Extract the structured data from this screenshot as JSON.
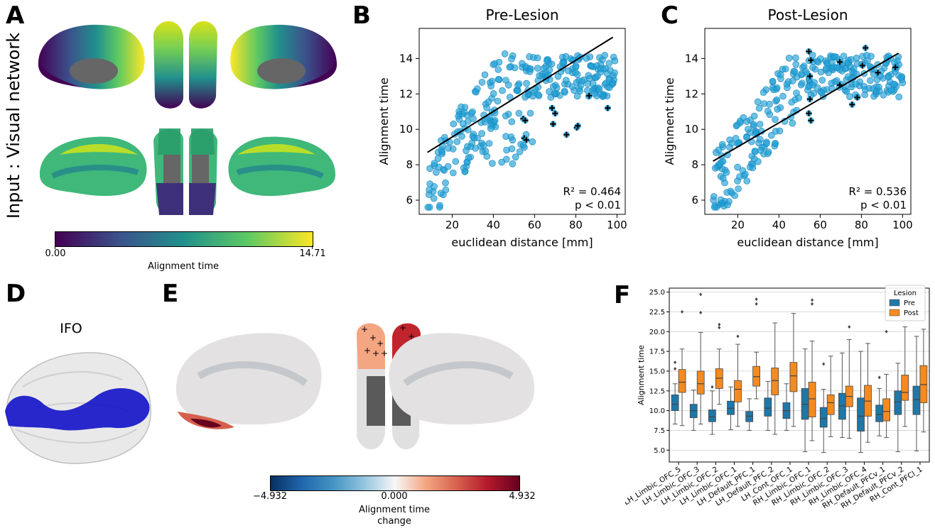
{
  "panels": {
    "A": {
      "label": "A",
      "side_title": "Input : Visual network",
      "colorbar": {
        "min": "0.00",
        "max": "14.71",
        "title": "Alignment time",
        "colors": [
          "#440154",
          "#3b528b",
          "#21918c",
          "#5ec962",
          "#fde725"
        ]
      }
    },
    "B": {
      "label": "B"
    },
    "C": {
      "label": "C"
    },
    "D": {
      "label": "D",
      "title": "IFO"
    },
    "E": {
      "label": "E",
      "colorbar": {
        "min": "−4.932",
        "mid": "0.000",
        "max": "4.932",
        "title_line1": "Alignment time",
        "title_line2": "change",
        "colors": [
          "#053061",
          "#2166ac",
          "#4393c3",
          "#92c5de",
          "#f7f7f7",
          "#f4a582",
          "#d6604d",
          "#b2182b",
          "#67001f"
        ]
      }
    },
    "F": {
      "label": "F"
    }
  },
  "chart_data": [
    {
      "type": "scatter",
      "title": "Pre-Lesion",
      "xlabel": "euclidean distance [mm]",
      "ylabel": "Alignment time",
      "xlim": [
        4,
        104
      ],
      "ylim": [
        5.2,
        15.7
      ],
      "xticks": [
        "20",
        "40",
        "60",
        "80",
        "100"
      ],
      "yticks": [
        "6",
        "8",
        "10",
        "12",
        "14"
      ],
      "annotation_r2": "R² = 0.464",
      "annotation_p": "p < 0.01",
      "fit_line": {
        "x": [
          8,
          98
        ],
        "y": [
          8.7,
          15.2
        ]
      },
      "color": "#1f9fd6",
      "lesion_points": {
        "x": [
          54.5,
          55.5,
          55,
          56,
          68.5,
          69,
          70,
          75.5,
          80.5,
          81,
          86.5,
          95.5
        ],
        "y": [
          10.6,
          10.5,
          9.5,
          9.4,
          11.2,
          10.3,
          10.9,
          9.7,
          10.1,
          10.2,
          11.9,
          11.2
        ]
      }
    },
    {
      "type": "scatter",
      "title": "Post-Lesion",
      "xlabel": "euclidean distance [mm]",
      "ylabel": "Alignment time",
      "xlim": [
        4,
        104
      ],
      "ylim": [
        5.2,
        15.7
      ],
      "xticks": [
        "20",
        "40",
        "60",
        "80",
        "100"
      ],
      "yticks": [
        "6",
        "8",
        "10",
        "12",
        "14"
      ],
      "annotation_r2": "R² = 0.536",
      "annotation_p": "p < 0.01",
      "fit_line": {
        "x": [
          8,
          98
        ],
        "y": [
          8.2,
          14.3
        ]
      },
      "color": "#1f9fd6",
      "lesion_points": {
        "x": [
          54.5,
          55.5,
          55,
          55,
          54.5,
          55.5,
          69.5,
          69.5,
          75.5,
          78,
          80.5,
          82,
          88,
          96.5
        ],
        "y": [
          14.4,
          13.9,
          13.0,
          11.7,
          10.9,
          10.5,
          13.8,
          12.5,
          11.4,
          11.8,
          13.6,
          14.6,
          13.2,
          13.5
        ]
      }
    },
    {
      "type": "box",
      "ylabel": "Alignment time",
      "ylim": [
        3.5,
        25.5
      ],
      "yticks": [
        "5.0",
        "7.5",
        "10.0",
        "12.5",
        "15.0",
        "17.5",
        "20.0",
        "22.5",
        "25.0"
      ],
      "legend_title": "Lesion",
      "legend_position": "top-right",
      "series": [
        {
          "name": "Pre",
          "color": "#1f77a8"
        },
        {
          "name": "Post",
          "color": "#f58a1f"
        }
      ],
      "categories": [
        "LH_Limbic_OFC_5",
        "LH_Limbic_OFC_3",
        "LH_Limbic_OFC_2",
        "LH_Limbic_OFC_1",
        "LH_Default_PFC_1",
        "LH_Default_PFC_2",
        "LH_Cont_OFC_1",
        "RH_Limbic_OFC_1",
        "RH_Limbic_OFC_2",
        "RH_Limbic_OFC_3",
        "RH_Limbic_OFC_4",
        "RH_Default_PFCv_1",
        "RH_Default_PFCv_2",
        "RH_Cont_PFCl_1"
      ],
      "pre": [
        {
          "min": 8.3,
          "q1": 10.0,
          "median": 10.8,
          "q3": 12.0,
          "max": 13.4,
          "outliers": [
            15.3,
            16.1
          ]
        },
        {
          "min": 7.5,
          "q1": 9.1,
          "median": 10.0,
          "q3": 10.8,
          "max": 12.6,
          "outliers": []
        },
        {
          "min": 7.0,
          "q1": 8.6,
          "median": 9.2,
          "q3": 10.1,
          "max": 12.5,
          "outliers": [
            13.0
          ]
        },
        {
          "min": 7.6,
          "q1": 9.5,
          "median": 10.3,
          "q3": 11.2,
          "max": 13.0,
          "outliers": []
        },
        {
          "min": 7.5,
          "q1": 8.6,
          "median": 9.3,
          "q3": 9.9,
          "max": 11.5,
          "outliers": []
        },
        {
          "min": 7.5,
          "q1": 9.3,
          "median": 10.3,
          "q3": 11.6,
          "max": 13.7,
          "outliers": []
        },
        {
          "min": 7.5,
          "q1": 9.0,
          "median": 10.0,
          "q3": 11.0,
          "max": 13.4,
          "outliers": []
        },
        {
          "min": 4.8,
          "q1": 8.9,
          "median": 10.8,
          "q3": 12.8,
          "max": 17.8,
          "outliers": []
        },
        {
          "min": 4.7,
          "q1": 7.9,
          "median": 9.0,
          "q3": 10.4,
          "max": 12.7,
          "outliers": [
            15.9
          ]
        },
        {
          "min": 6.6,
          "q1": 8.9,
          "median": 10.6,
          "q3": 12.2,
          "max": 17.3,
          "outliers": []
        },
        {
          "min": 4.7,
          "q1": 7.4,
          "median": 9.3,
          "q3": 11.6,
          "max": 17.5,
          "outliers": []
        },
        {
          "min": 6.8,
          "q1": 8.6,
          "median": 9.5,
          "q3": 10.7,
          "max": 12.8,
          "outliers": [
            14.2
          ]
        },
        {
          "min": 4.8,
          "q1": 9.5,
          "median": 11.1,
          "q3": 12.5,
          "max": 16.0,
          "outliers": []
        },
        {
          "min": 4.9,
          "q1": 9.5,
          "median": 11.4,
          "q3": 13.1,
          "max": 19.4,
          "outliers": []
        }
      ],
      "post": [
        {
          "min": 8.1,
          "q1": 12.3,
          "median": 13.6,
          "q3": 15.2,
          "max": 17.8,
          "outliers": [
            22.5
          ]
        },
        {
          "min": 8.3,
          "q1": 12.1,
          "median": 13.4,
          "q3": 15.0,
          "max": 19.9,
          "outliers": [
            22.4,
            24.7
          ]
        },
        {
          "min": 10.8,
          "q1": 12.8,
          "median": 14.1,
          "q3": 15.3,
          "max": 17.8,
          "outliers": [
            20.5,
            20.9
          ]
        },
        {
          "min": 8.0,
          "q1": 11.1,
          "median": 12.7,
          "q3": 13.8,
          "max": 18.4,
          "outliers": [
            19.4
          ]
        },
        {
          "min": 11.5,
          "q1": 13.1,
          "median": 14.3,
          "q3": 15.6,
          "max": 17.4,
          "outliers": [
            23.5,
            24.1
          ]
        },
        {
          "min": 7.0,
          "q1": 12.0,
          "median": 13.8,
          "q3": 15.4,
          "max": 21.1,
          "outliers": []
        },
        {
          "min": 8.0,
          "q1": 12.4,
          "median": 14.4,
          "q3": 16.1,
          "max": 22.3,
          "outliers": []
        },
        {
          "min": 6.2,
          "q1": 9.2,
          "median": 11.5,
          "q3": 13.6,
          "max": 18.8,
          "outliers": [
            23.5,
            24.0
          ]
        },
        {
          "min": 6.7,
          "q1": 9.5,
          "median": 11.0,
          "q3": 12.0,
          "max": 16.9,
          "outliers": []
        },
        {
          "min": 6.5,
          "q1": 10.5,
          "median": 11.8,
          "q3": 13.1,
          "max": 19.0,
          "outliers": [
            20.6
          ]
        },
        {
          "min": 6.0,
          "q1": 9.3,
          "median": 11.2,
          "q3": 13.2,
          "max": 18.5,
          "outliers": []
        },
        {
          "min": 6.6,
          "q1": 8.7,
          "median": 9.9,
          "q3": 11.5,
          "max": 14.6,
          "outliers": [
            20.0
          ]
        },
        {
          "min": 8.0,
          "q1": 11.3,
          "median": 12.3,
          "q3": 14.5,
          "max": 20.6,
          "outliers": []
        },
        {
          "min": 7.3,
          "q1": 11.0,
          "median": 13.3,
          "q3": 15.7,
          "max": 20.3,
          "outliers": []
        }
      ]
    }
  ]
}
